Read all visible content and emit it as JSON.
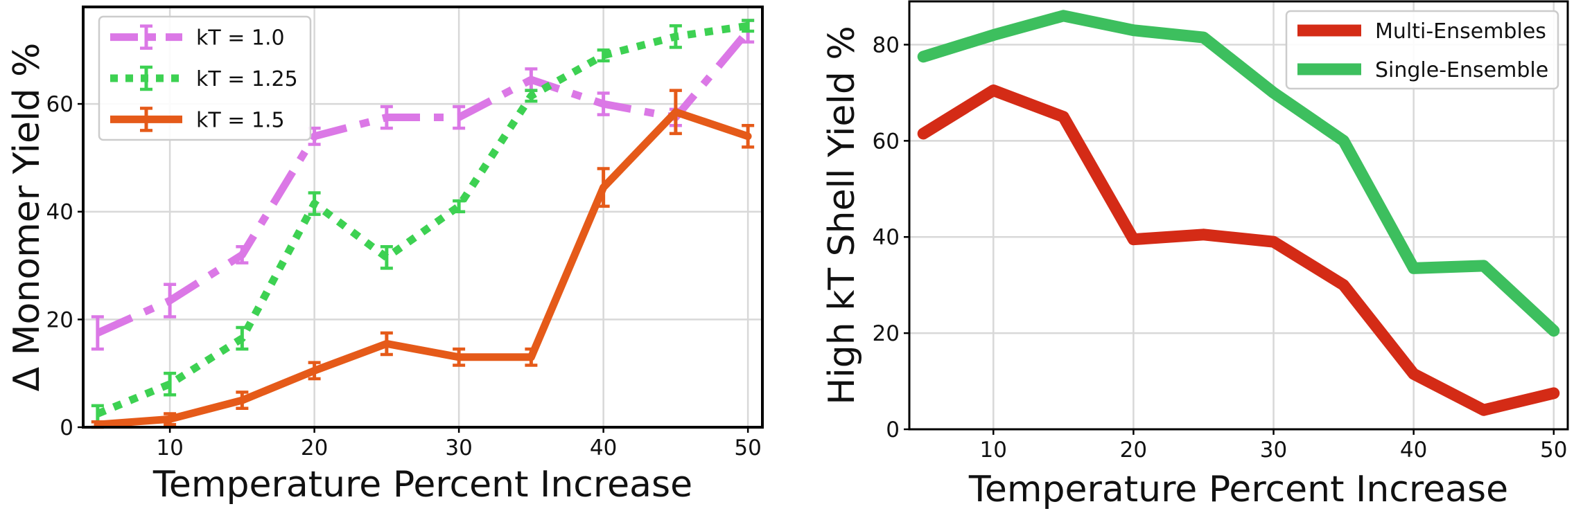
{
  "chart_data": [
    {
      "type": "line",
      "xlabel": "Temperature Percent Increase",
      "ylabel": "Δ Monomer Yield  %",
      "x": [
        5,
        10,
        15,
        20,
        25,
        30,
        35,
        40,
        45,
        50
      ],
      "xlim": [
        4,
        51
      ],
      "ylim": [
        0,
        78
      ],
      "xticks": [
        10,
        20,
        30,
        40,
        50
      ],
      "yticks": [
        0,
        20,
        40,
        60
      ],
      "grid": true,
      "legend_position": "top-left",
      "series": [
        {
          "name": "kT = 1.0",
          "color": "#db78e6",
          "linestyle": "dashdot",
          "values": [
            17.5,
            23.5,
            32,
            54,
            57.5,
            57.5,
            64.5,
            60,
            57.5,
            73.5
          ],
          "errors": [
            3,
            3,
            1.5,
            1.5,
            2,
            2,
            2,
            2,
            1.5,
            2
          ]
        },
        {
          "name": "kT = 1.25",
          "color": "#3dd152",
          "linestyle": "dotted",
          "values": [
            2.5,
            8,
            16.5,
            41.5,
            31.5,
            41,
            61.5,
            69,
            72.5,
            74.5
          ],
          "errors": [
            1.5,
            2,
            2,
            2,
            2,
            1,
            1,
            1,
            2,
            1
          ]
        },
        {
          "name": "kT = 1.5",
          "color": "#e55a19",
          "linestyle": "solid",
          "values": [
            0.5,
            1.5,
            5,
            10.5,
            15.5,
            13,
            13,
            44.5,
            58.5,
            54
          ],
          "errors": [
            0.5,
            1,
            1.5,
            1.5,
            2,
            1.5,
            1.5,
            3.5,
            4,
            2
          ]
        }
      ]
    },
    {
      "type": "line",
      "xlabel": "Temperature Percent Increase",
      "ylabel": "High kT Shell Yield %",
      "x": [
        5,
        10,
        15,
        20,
        25,
        30,
        35,
        40,
        45,
        50
      ],
      "xlim": [
        4,
        51
      ],
      "ylim": [
        0,
        89
      ],
      "xticks": [
        10,
        20,
        30,
        40,
        50
      ],
      "yticks": [
        0,
        20,
        40,
        60,
        80
      ],
      "grid": true,
      "legend_position": "top-right",
      "series": [
        {
          "name": "Multi-Ensembles",
          "color": "#d42b16",
          "linestyle": "solid",
          "values": [
            61.5,
            70.5,
            65,
            39.5,
            40.5,
            39,
            30,
            11.5,
            4,
            7.5
          ]
        },
        {
          "name": "Single-Ensemble",
          "color": "#3dbf5e",
          "linestyle": "solid",
          "values": [
            77.5,
            82,
            86,
            83,
            81.5,
            70,
            60,
            33.5,
            34,
            20.5
          ]
        }
      ]
    }
  ]
}
